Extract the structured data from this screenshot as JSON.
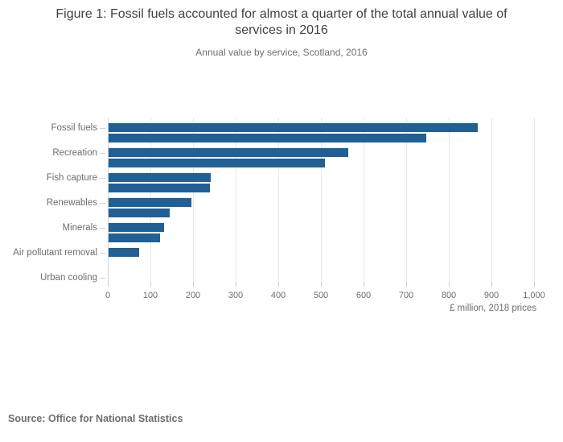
{
  "title": "Figure 1: Fossil fuels accounted for almost a quarter of the total annual value of services in 2016",
  "subtitle": "Annual value by service, Scotland, 2016",
  "source": "Source: Office for National Statistics",
  "colors": {
    "bar": "#206095",
    "axis_line": "#c8d3e2",
    "gridline": "#e7e7e7",
    "tick": "#cccccc",
    "muted_text": "#6e6e6e",
    "title_text": "#414042"
  },
  "chart_data": {
    "type": "bar",
    "orientation": "horizontal",
    "title": "Figure 1: Fossil fuels accounted for almost a quarter of the total annual value of services in 2016",
    "subtitle": "Annual value by service, Scotland, 2016",
    "categories": [
      "Fossil fuels",
      "Recreation",
      "Fish capture",
      "Renewables",
      "Minerals",
      "Air pollutant removal",
      "Urban cooling"
    ],
    "series": [
      {
        "name": "upper-bar",
        "values": [
          868,
          564,
          242,
          197,
          132,
          74,
          0
        ]
      },
      {
        "name": "lower-bar",
        "values": [
          748,
          509,
          240,
          145,
          122,
          0,
          0
        ]
      }
    ],
    "xlabel": "£ million, 2018 prices",
    "ylabel": "",
    "xlim": [
      0,
      1000
    ],
    "xticks": [
      0,
      100,
      200,
      300,
      400,
      500,
      600,
      700,
      800,
      900,
      1000
    ],
    "xtick_labels": [
      "0",
      "100",
      "200",
      "300",
      "400",
      "500",
      "600",
      "700",
      "800",
      "900",
      "1,000"
    ],
    "grid": "vertical",
    "legend": "none",
    "bar_color": "#206095"
  }
}
